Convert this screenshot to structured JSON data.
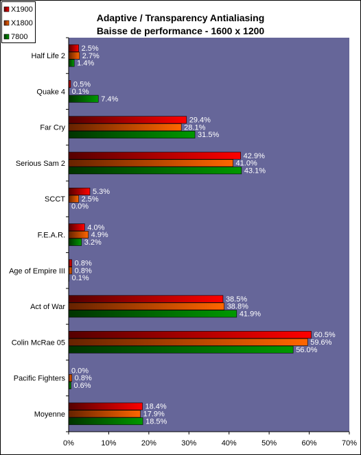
{
  "chart_data": {
    "type": "bar",
    "orientation": "horizontal",
    "title": [
      "Adaptive / Transparency Antialiasing",
      "Baisse de performance - 1600 x 1200"
    ],
    "categories": [
      "Half Life 2",
      "Quake 4",
      "Far Cry",
      "Serious Sam 2",
      "SCCT",
      "F.E.A.R.",
      "Age of Empire III",
      "Act of War",
      "Colin McRae 05",
      "Pacific Fighters",
      "Moyenne"
    ],
    "series": [
      {
        "name": "X1900",
        "color": "#ff0000",
        "values": [
          2.5,
          0.5,
          29.4,
          42.9,
          5.3,
          4.0,
          0.8,
          38.5,
          60.5,
          0.0,
          18.4
        ]
      },
      {
        "name": "X1800",
        "color": "#ff6600",
        "values": [
          2.7,
          0.1,
          28.1,
          41.0,
          2.5,
          4.9,
          0.8,
          38.8,
          59.6,
          0.8,
          17.9
        ]
      },
      {
        "name": "7800",
        "color": "#009900",
        "values": [
          1.4,
          7.4,
          31.5,
          43.1,
          0.0,
          3.2,
          0.1,
          41.9,
          56.0,
          0.6,
          18.5
        ]
      }
    ],
    "value_labels": [
      [
        "2.5%",
        "0.5%",
        "29.4%",
        "42.9%",
        "5.3%",
        "4.0%",
        "0.8%",
        "38.5%",
        "60.5%",
        "0.0%",
        "18.4%"
      ],
      [
        "2.7%",
        "0.1%",
        "28.1%",
        "41.0%",
        "2.5%",
        "4.9%",
        "0.8%",
        "38.8%",
        "59.6%",
        "0.8%",
        "17.9%"
      ],
      [
        "1.4%",
        "7.4%",
        "31.5%",
        "43.1%",
        "0.0%",
        "3.2%",
        "0.1%",
        "41.9%",
        "56.0%",
        "0.6%",
        "18.5%"
      ]
    ],
    "xlim": [
      0,
      70
    ],
    "xticks": [
      0,
      10,
      20,
      30,
      40,
      50,
      60,
      70
    ],
    "xtick_labels": [
      "0%",
      "10%",
      "20%",
      "30%",
      "40%",
      "50%",
      "60%",
      "70%"
    ],
    "plot_background": "#666699",
    "grid": false,
    "legend_position": "top-left"
  }
}
